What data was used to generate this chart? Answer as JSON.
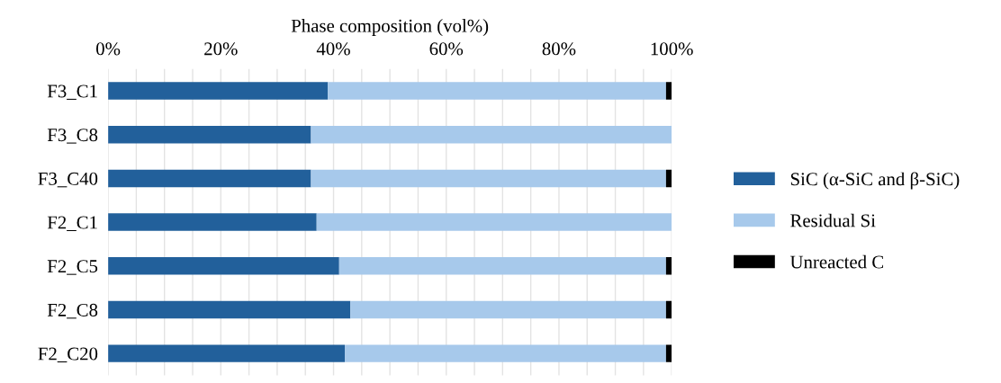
{
  "chart_data": {
    "type": "bar",
    "orientation": "horizontal",
    "stacked": true,
    "xlabel": "Phase composition (vol%)",
    "categories": [
      "F3_C1",
      "F3_C8",
      "F3_C40",
      "F2_C1",
      "F2_C5",
      "F2_C8",
      "F2_C20"
    ],
    "series": [
      {
        "name": "SiC (α-SiC and β-SiC)",
        "color": "#22609b",
        "values": [
          39,
          36,
          36,
          37,
          41,
          43,
          42
        ]
      },
      {
        "name": "Residual Si",
        "color": "#a7c9eb",
        "values": [
          60,
          64,
          63,
          63,
          58,
          56,
          57
        ]
      },
      {
        "name": "Unreacted C",
        "color": "#000000",
        "values": [
          1,
          0,
          1,
          0,
          1,
          1,
          1
        ]
      }
    ],
    "xlim": [
      0,
      100
    ],
    "xticks": [
      {
        "value": 0,
        "label": "0%"
      },
      {
        "value": 5,
        "label": null
      },
      {
        "value": 10,
        "label": null
      },
      {
        "value": 15,
        "label": null
      },
      {
        "value": 20,
        "label": "20%"
      },
      {
        "value": 25,
        "label": null
      },
      {
        "value": 30,
        "label": null
      },
      {
        "value": 35,
        "label": null
      },
      {
        "value": 40,
        "label": "40%"
      },
      {
        "value": 45,
        "label": null
      },
      {
        "value": 50,
        "label": null
      },
      {
        "value": 55,
        "label": null
      },
      {
        "value": 60,
        "label": "60%"
      },
      {
        "value": 65,
        "label": null
      },
      {
        "value": 70,
        "label": null
      },
      {
        "value": 75,
        "label": null
      },
      {
        "value": 80,
        "label": "80%"
      },
      {
        "value": 85,
        "label": null
      },
      {
        "value": 90,
        "label": null
      },
      {
        "value": 95,
        "label": null
      },
      {
        "value": 100,
        "label": "100%"
      }
    ],
    "grid": "x",
    "legend": "right"
  }
}
